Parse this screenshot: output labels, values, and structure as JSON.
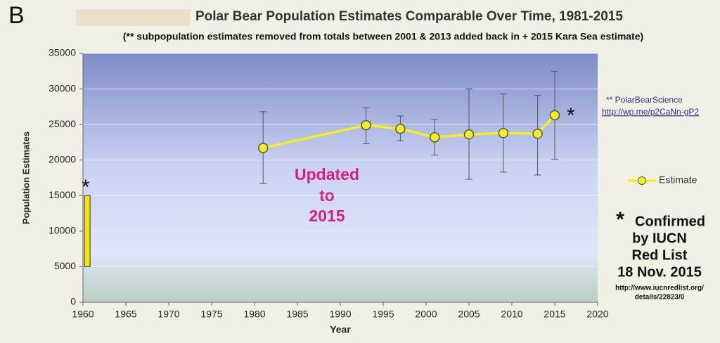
{
  "chart_data": {
    "type": "line",
    "title": "Polar Bear Population  Estimates Comparable  Over Time, 1981-2015",
    "subtitle": "(** subpopulation estimates removed from totals between 2001 & 2013 added back in + 2015 Kara Sea estimate)",
    "x_label": "Year",
    "y_label": "Population Estimates",
    "x": [
      1981,
      1993,
      1997,
      2001,
      2005,
      2009,
      2013,
      2015
    ],
    "series": [
      {
        "name": "Estimate",
        "color": "#f2f01e",
        "values": [
          21700,
          24900,
          24400,
          23200,
          23600,
          23800,
          23700,
          26300
        ],
        "low": [
          16700,
          22300,
          22700,
          20700,
          17300,
          18300,
          17900,
          20100
        ],
        "high": [
          26800,
          27400,
          26200,
          25700,
          30000,
          29300,
          29100,
          32500
        ]
      }
    ],
    "range_bar": {
      "x": 1960.5,
      "low": 5000,
      "high": 15000,
      "color": "#f5e400"
    },
    "xlim": [
      1960,
      2020
    ],
    "xticks": [
      1960,
      1965,
      1970,
      1975,
      1980,
      1985,
      1990,
      1995,
      2000,
      2005,
      2010,
      2015,
      2020
    ],
    "ylim": [
      0,
      35000
    ],
    "yticks": [
      0,
      5000,
      10000,
      15000,
      20000,
      25000,
      30000,
      35000
    ],
    "grid": true,
    "legend": "right",
    "annotations": {
      "panel_letter": "B",
      "updated": [
        "Updated",
        "to",
        "2015"
      ],
      "source": [
        "** PolarBearScience",
        "http://wp.me/p2CaNn-gP2"
      ],
      "asterisk_2015": "*",
      "asterisk_1960": "*",
      "confirmed": [
        "*",
        "Confirmed",
        "by IUCN",
        "Red List",
        "18 Nov. 2015"
      ],
      "iucn_url": [
        "http://www.iucnredlist.org/",
        "details/22823/0"
      ]
    }
  }
}
